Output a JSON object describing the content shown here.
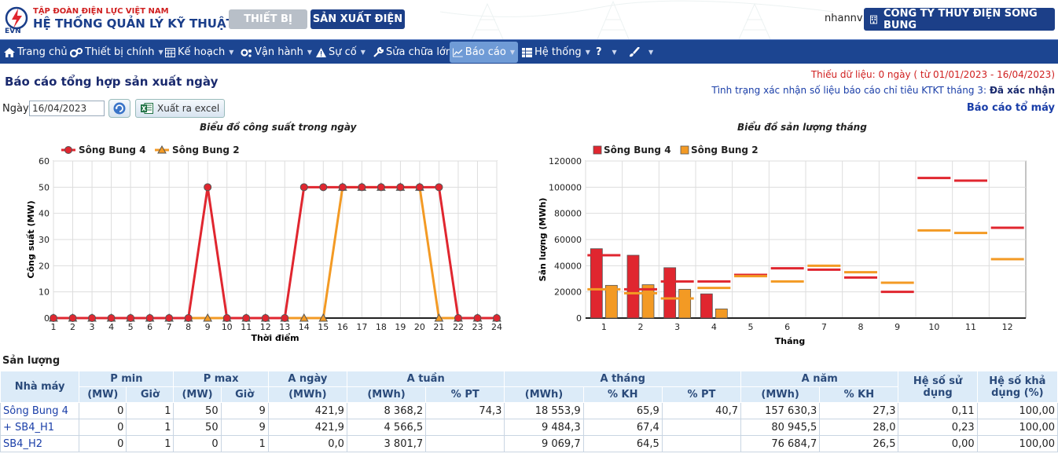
{
  "header": {
    "org_name": "TẬP ĐOÀN ĐIỆN LỰC VIỆT NAM",
    "system_name": "HỆ THỐNG QUẢN LÝ KỸ THUẬT",
    "logo_text": "EVN",
    "tabs": [
      "THIẾT BỊ",
      "SẢN XUẤT ĐIỆN"
    ],
    "user": "nhannv",
    "company": "CÔNG TY THỦY ĐIỆN SÔNG BUNG"
  },
  "nav": {
    "items": [
      "Trang chủ",
      "Thiết bị chính",
      "Kế hoạch",
      "Vận hành",
      "Sự cố",
      "Sửa chữa lớn",
      "Báo cáo",
      "Hệ thống",
      "?"
    ]
  },
  "page": {
    "title": "Báo cáo tổng hợp sản xuất ngày",
    "status_missing": "Thiếu dữ liệu: 0 ngày ( từ 01/01/2023 - 16/04/2023)",
    "status_confirm_label": "Tình trạng xác nhận số liệu báo cáo chỉ tiêu KTKT tháng 3:",
    "status_confirm_value": "Đã xác nhận",
    "report_link": "Báo cáo tổ máy",
    "date_label": "Ngày",
    "date_value": "16/04/2023",
    "excel_label": "Xuất ra excel",
    "section_title": "Sản lượng"
  },
  "chart_data": [
    {
      "type": "line",
      "title": "Biểu đồ công suất trong ngày",
      "xlabel": "Thời điểm",
      "ylabel": "Công suất (MW)",
      "ylim": [
        0,
        60
      ],
      "yticks": [
        0,
        10,
        20,
        30,
        40,
        50,
        60
      ],
      "x": [
        1,
        2,
        3,
        4,
        5,
        6,
        7,
        8,
        9,
        10,
        11,
        12,
        13,
        14,
        15,
        16,
        17,
        18,
        19,
        20,
        21,
        22,
        23,
        24
      ],
      "legend": "top-left",
      "grid": true,
      "series": [
        {
          "name": "Sông Bung 4",
          "color": "#e0262f",
          "values": [
            0,
            0,
            0,
            0,
            0,
            0,
            0,
            0,
            50,
            0,
            0,
            0,
            0,
            50,
            50,
            50,
            50,
            50,
            50,
            50,
            50,
            0,
            0,
            0
          ]
        },
        {
          "name": "Sông Bung 2",
          "color": "#f39a24",
          "values": [
            0,
            0,
            0,
            0,
            0,
            0,
            0,
            0,
            0,
            0,
            0,
            0,
            0,
            0,
            0,
            50,
            50,
            50,
            50,
            50,
            0,
            0,
            0,
            0
          ]
        }
      ]
    },
    {
      "type": "bar",
      "title": "Biểu đồ sản lượng tháng",
      "xlabel": "Tháng",
      "ylabel": "Sản lượng (MWh)",
      "ylim": [
        0,
        120000
      ],
      "yticks": [
        0,
        20000,
        40000,
        60000,
        80000,
        100000,
        120000
      ],
      "categories": [
        1,
        2,
        3,
        4,
        5,
        6,
        7,
        8,
        9,
        10,
        11,
        12
      ],
      "legend": "top-left",
      "grid": true,
      "series": [
        {
          "name": "Sông Bung 4",
          "color": "#e0262f",
          "values": [
            53000,
            48000,
            38500,
            18500,
            0,
            0,
            0,
            0,
            0,
            0,
            0,
            0
          ],
          "plan": [
            48000,
            22000,
            28000,
            28000,
            33000,
            38000,
            37000,
            31000,
            20000,
            107000,
            105000,
            69000
          ]
        },
        {
          "name": "Sông Bung 2",
          "color": "#f39a24",
          "values": [
            25000,
            25500,
            22000,
            7000,
            0,
            0,
            0,
            0,
            0,
            0,
            0,
            0
          ],
          "plan": [
            22000,
            19000,
            15000,
            23000,
            32000,
            28000,
            40000,
            35000,
            27000,
            67000,
            65000,
            45000
          ]
        }
      ]
    }
  ],
  "table": {
    "header_row1": [
      "Nhà máy",
      "P min",
      "P max",
      "A ngày",
      "A tuần",
      "A tháng",
      "A năm",
      "Hệ số sử dụng",
      "Hệ số khả dụng (%)"
    ],
    "header_row2": [
      "(MW)",
      "Giờ",
      "(MW)",
      "Giờ",
      "(MWh)",
      "(MWh)",
      "% PT",
      "(MWh)",
      "% KH",
      "% PT",
      "(MWh)",
      "% KH"
    ],
    "rows": [
      [
        "Sông Bung 4",
        "0",
        "1",
        "50",
        "9",
        "421,9",
        "8 368,2",
        "74,3",
        "18 553,9",
        "65,9",
        "40,7",
        "157 630,3",
        "27,3",
        "0,11",
        "100,00"
      ],
      [
        "+ SB4_H1",
        "0",
        "1",
        "50",
        "9",
        "421,9",
        "4 566,5",
        "",
        "9 484,3",
        "67,4",
        "",
        "80 945,5",
        "28,0",
        "0,23",
        "100,00"
      ],
      [
        "SB4_H2",
        "0",
        "1",
        "0",
        "1",
        "0,0",
        "3 801,7",
        "",
        "9 069,7",
        "64,5",
        "",
        "76 684,7",
        "26,5",
        "0,00",
        "100,00"
      ]
    ]
  }
}
